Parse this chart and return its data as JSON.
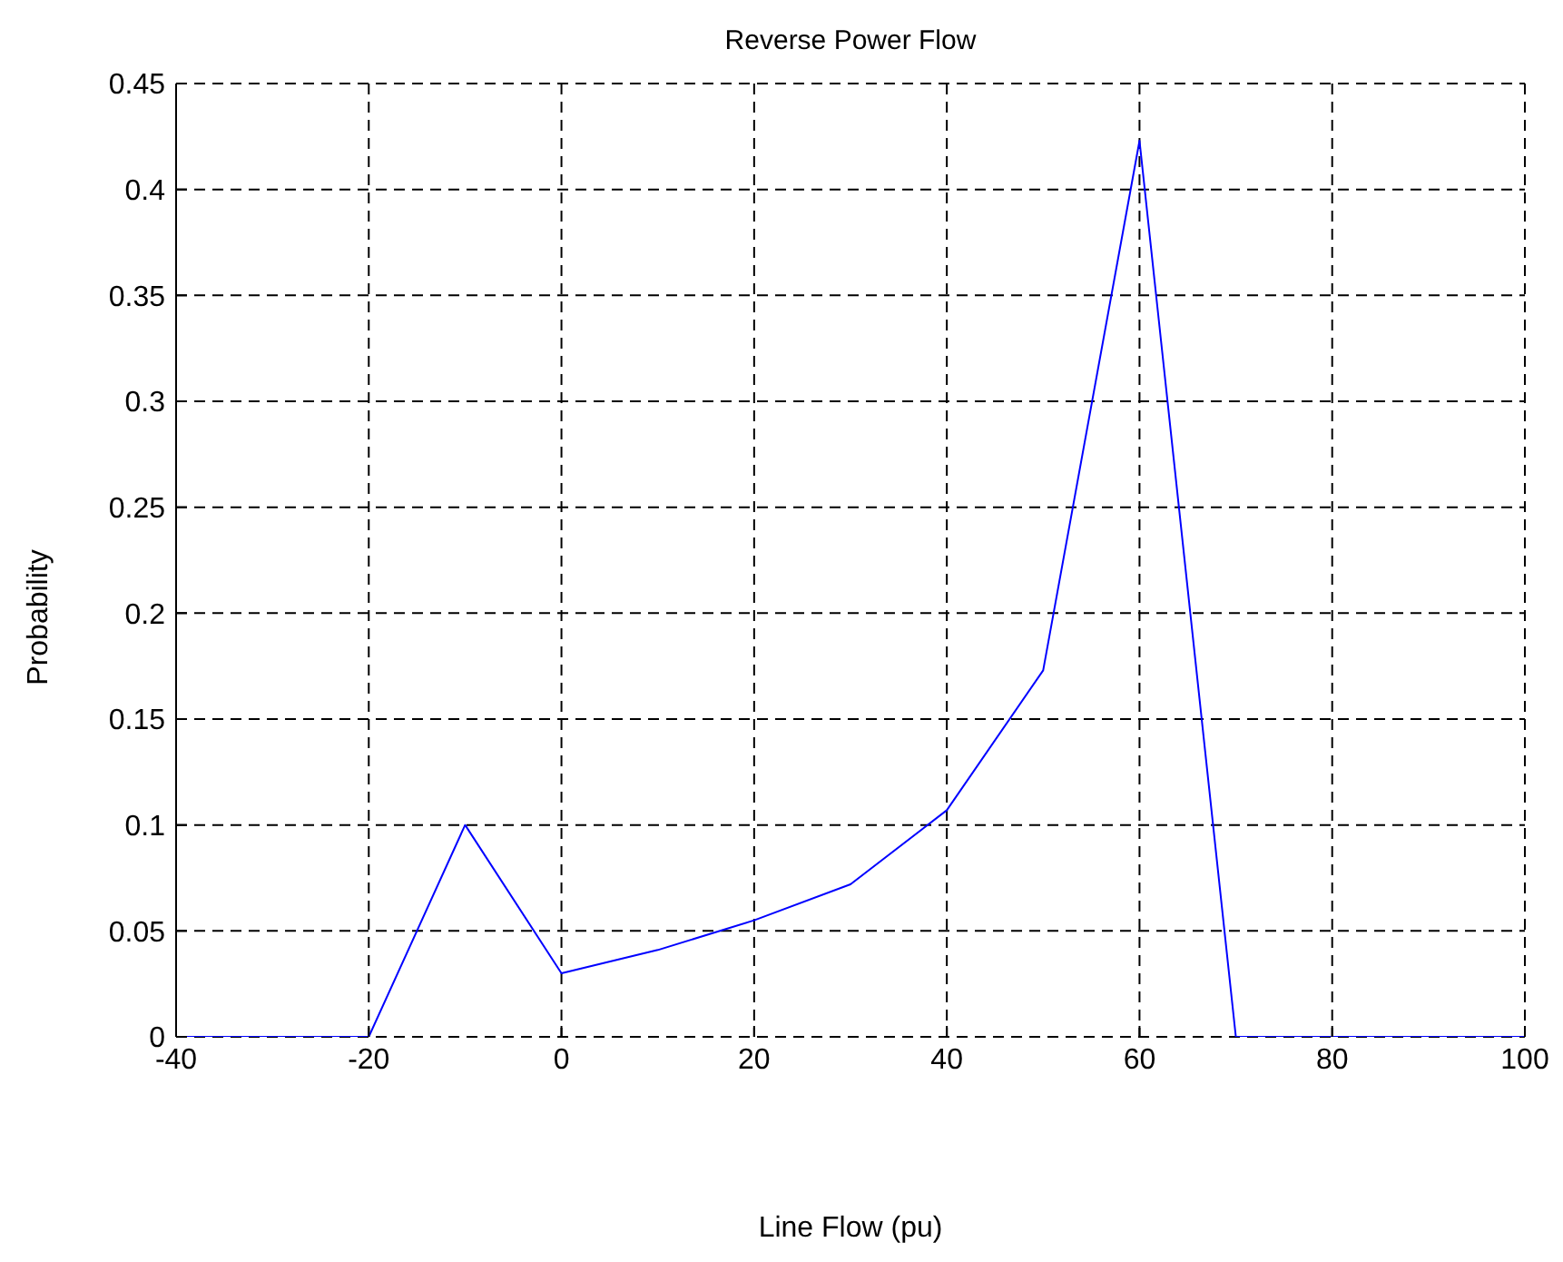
{
  "chart_data": {
    "type": "line",
    "title": "Reverse Power Flow",
    "xlabel": "Line Flow (pu)",
    "ylabel": "Probability",
    "x": [
      -40,
      -20,
      -10,
      0,
      10,
      20,
      30,
      40,
      50,
      60,
      70,
      100
    ],
    "series": [
      {
        "color": "#0000ff",
        "values": [
          0,
          0,
          0.1,
          0.03,
          0.041,
          0.055,
          0.072,
          0.107,
          0.173,
          0.423,
          0,
          0
        ]
      }
    ],
    "xlim": [
      -40,
      100
    ],
    "xticks": [
      -40,
      -20,
      0,
      20,
      40,
      60,
      80,
      100
    ],
    "ylim": [
      0,
      0.45
    ],
    "yticks": [
      0,
      0.05,
      0.1,
      0.15,
      0.2,
      0.25,
      0.3,
      0.35,
      0.4,
      0.45
    ],
    "grid": true,
    "legend": false,
    "marker": "none",
    "line_style": "solid"
  }
}
